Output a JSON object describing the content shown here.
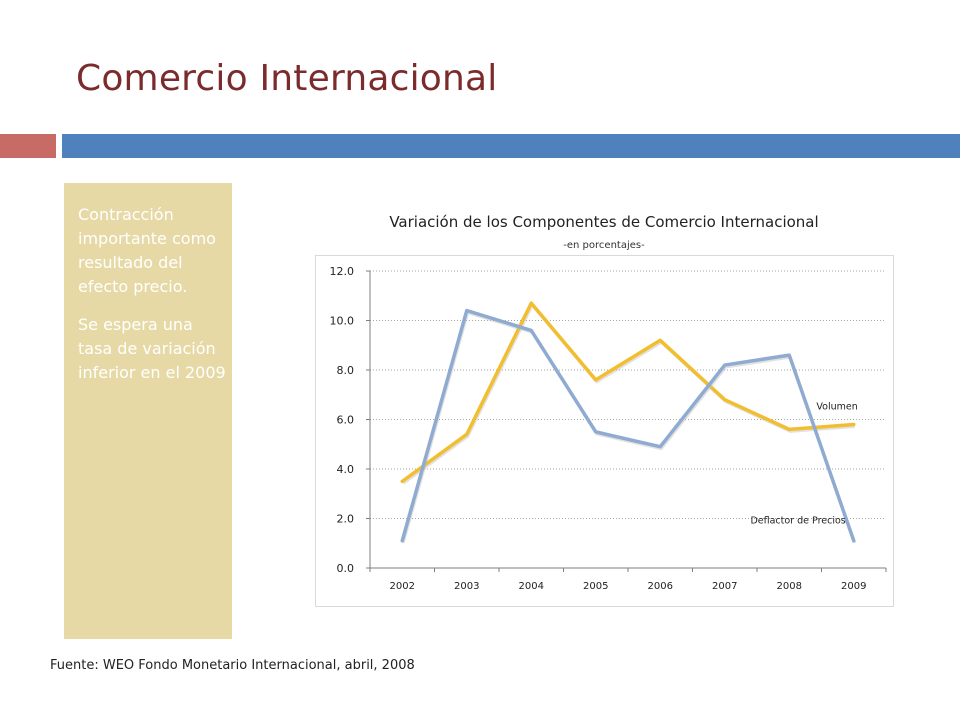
{
  "slide": {
    "title": "Comercio Internacional",
    "side_paragraph_1": "Contracción importante como resultado del efecto precio.",
    "side_paragraph_2": "Se espera una tasa de variación inferior en el 2009",
    "source": "Fuente: WEO Fondo Monetario Internacional, abril, 2008"
  },
  "colors": {
    "title": "#7b2b2b",
    "accent_red": "#c86a66",
    "accent_blue": "#4f81bd",
    "side_box": "#e6d9a6",
    "volumen_line": "#f2bd2f",
    "deflactor_line": "#8fabd1"
  },
  "chart_data": {
    "type": "line",
    "title": "Variación de los Componentes de Comercio Internacional",
    "subtitle": "-en porcentajes-",
    "categories": [
      "2002",
      "2003",
      "2004",
      "2005",
      "2006",
      "2007",
      "2008",
      "2009"
    ],
    "y_ticks": [
      "0.0",
      "2.0",
      "4.0",
      "6.0",
      "8.0",
      "10.0",
      "12.0"
    ],
    "ylim": [
      0,
      12
    ],
    "grid": "horizontal dotted",
    "series": [
      {
        "name": "Volumen",
        "values": [
          3.5,
          5.4,
          10.7,
          7.6,
          9.2,
          6.8,
          5.6,
          5.8
        ]
      },
      {
        "name": "Deflactor de Precios",
        "values": [
          1.1,
          10.4,
          9.6,
          5.5,
          4.9,
          8.2,
          8.6,
          1.1
        ]
      }
    ]
  }
}
